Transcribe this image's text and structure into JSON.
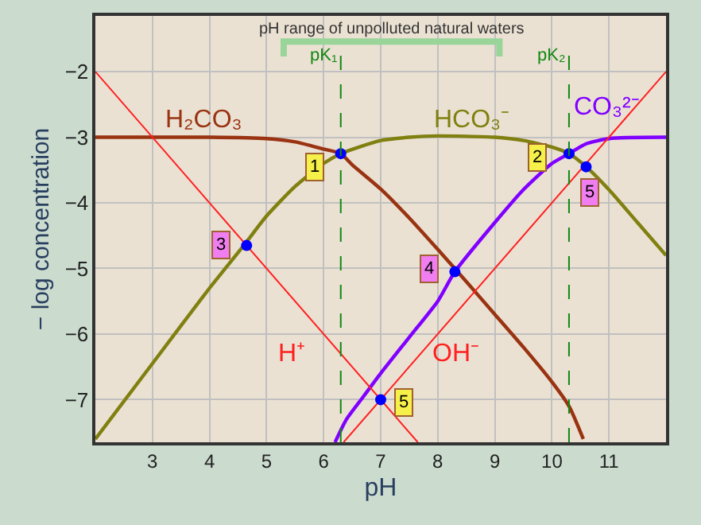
{
  "chart_data": {
    "type": "line",
    "xlabel": "pH",
    "ylabel": "− log concentration",
    "xlim": [
      2,
      12
    ],
    "ylim": [
      -7.65,
      -1.15
    ],
    "xticks": [
      3,
      4,
      5,
      6,
      7,
      8,
      9,
      10,
      11
    ],
    "yticks": [
      -2,
      -3,
      -4,
      -5,
      -6,
      -7
    ],
    "grid": true,
    "legend": false,
    "series": [
      {
        "name": "H₂CO₃",
        "color": "#993311",
        "x": [
          2,
          3,
          4,
          5,
          5.5,
          6,
          6.3,
          6.5,
          7,
          7.5,
          8,
          8.5,
          9,
          9.5,
          10,
          10.3,
          10.55
        ],
        "values": [
          -3.0,
          -3.0,
          -3.0,
          -3.02,
          -3.07,
          -3.18,
          -3.25,
          -3.42,
          -3.79,
          -4.23,
          -4.71,
          -5.2,
          -5.7,
          -6.2,
          -6.73,
          -7.1,
          -7.6
        ]
      },
      {
        "name": "HCO₃⁻",
        "color": "#808010",
        "x": [
          2,
          3,
          4,
          4.6,
          5,
          5.5,
          6,
          6.3,
          7,
          7.5,
          8,
          9,
          9.5,
          10,
          10.3,
          10.6,
          11,
          11.5,
          12
        ],
        "values": [
          -7.6,
          -6.45,
          -5.3,
          -4.65,
          -4.2,
          -3.75,
          -3.4,
          -3.25,
          -3.05,
          -3.0,
          -2.98,
          -3.0,
          -3.05,
          -3.15,
          -3.25,
          -3.45,
          -3.8,
          -4.3,
          -4.8
        ]
      },
      {
        "name": "CO₃²⁻",
        "color": "#8000ff",
        "x": [
          6.2,
          6.4,
          6.7,
          7,
          7.5,
          8,
          8.3,
          9,
          9.5,
          10,
          10.3,
          10.6,
          11,
          12
        ],
        "values": [
          -7.65,
          -7.3,
          -6.95,
          -6.6,
          -6.05,
          -5.5,
          -5.05,
          -4.3,
          -3.8,
          -3.4,
          -3.25,
          -3.1,
          -3.02,
          -3.0
        ]
      },
      {
        "name": "H⁺",
        "color": "#ff2020",
        "x": [
          2,
          7.65
        ],
        "values": [
          -2,
          -7.65
        ]
      },
      {
        "name": "OH⁻",
        "color": "#ff2020",
        "x": [
          6.35,
          12
        ],
        "values": [
          -7.65,
          -2
        ]
      },
      {
        "type": "scatter",
        "color": "#0000ff",
        "marker": "circle",
        "x": [
          6.3,
          10.3,
          4.65,
          8.3,
          7.0,
          10.6
        ],
        "values": [
          -3.25,
          -3.25,
          -4.65,
          -5.05,
          -7.0,
          -3.45
        ]
      }
    ],
    "ref_lines": [
      {
        "axis": "x",
        "value": 6.3,
        "label": "pK₁",
        "color": "#118811",
        "line_style": "dashed"
      },
      {
        "axis": "x",
        "value": 10.3,
        "label": "pK₂",
        "color": "#118811",
        "line_style": "dashed"
      }
    ],
    "annotations": [
      "pH range of unpolluted natural waters",
      {
        "text": "1",
        "x": 5.85,
        "y": -3.45
      },
      {
        "text": "2",
        "x": 9.75,
        "y": -3.3
      },
      {
        "text": "3",
        "x": 4.2,
        "y": -4.65
      },
      {
        "text": "4",
        "x": 7.85,
        "y": -5.0
      },
      {
        "text": "5",
        "x": 7.4,
        "y": -7.05
      },
      {
        "text": "5",
        "x": 10.65,
        "y": -3.85
      }
    ]
  }
}
